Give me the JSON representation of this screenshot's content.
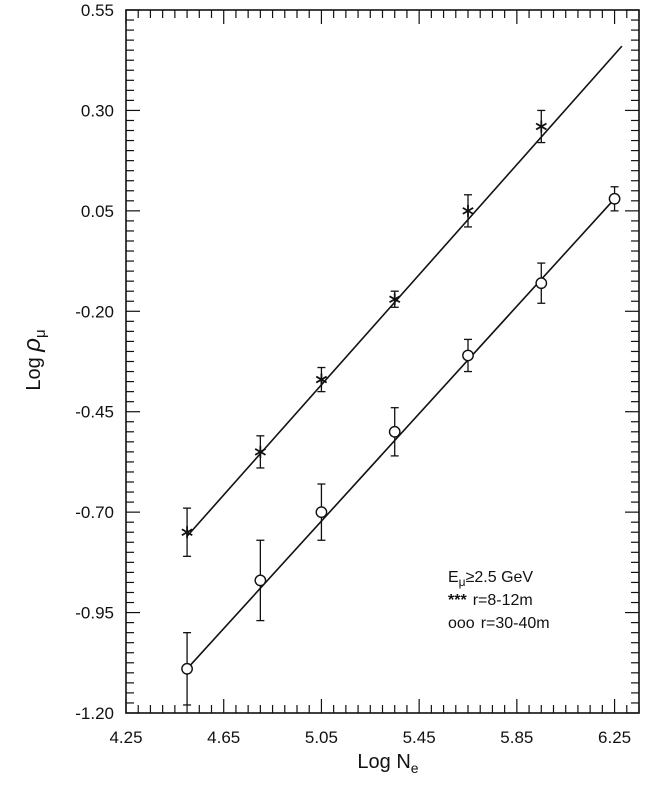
{
  "chart_data": {
    "type": "scatter",
    "xlabel": {
      "text": "Log N",
      "sub": "e"
    },
    "ylabel": {
      "text": "Log ",
      "rho": "ρ",
      "sub": "μ"
    },
    "xlim": [
      4.25,
      6.35
    ],
    "ylim": [
      -1.2,
      0.55
    ],
    "xticks": [
      4.25,
      4.65,
      5.05,
      5.45,
      5.85,
      6.25
    ],
    "xtick_labels": [
      "4.25",
      "4.65",
      "5.05",
      "5.45",
      "5.85",
      "6.25"
    ],
    "yticks": [
      0.55,
      0.3,
      0.05,
      -0.2,
      -0.45,
      -0.7,
      -0.95,
      -1.2
    ],
    "ytick_labels": [
      "0.55",
      "0.30",
      "0.05",
      "-0.20",
      "-0.45",
      "-0.70",
      "-0.95",
      "-1.20"
    ],
    "grid": false,
    "legend_position": "bottom-right",
    "legend": {
      "line1": {
        "prefix": "E",
        "sub": "μ",
        "rest": "≥2.5  GeV"
      },
      "line2": {
        "marker": "***",
        "text": "r=8-12m"
      },
      "line3": {
        "marker": "ooo",
        "text": "r=30-40m"
      }
    },
    "series": [
      {
        "name": "r=8-12m",
        "marker": "asterisk",
        "x": [
          4.5,
          4.8,
          5.05,
          5.35,
          5.65,
          5.95
        ],
        "y": [
          -0.75,
          -0.55,
          -0.37,
          -0.17,
          0.05,
          0.26
        ],
        "yerr": [
          0.06,
          0.04,
          0.03,
          0.02,
          0.04,
          0.04
        ],
        "fit": {
          "x": [
            4.5,
            6.28
          ],
          "y": [
            -0.76,
            0.46
          ]
        }
      },
      {
        "name": "r=30-40m",
        "marker": "circle",
        "x": [
          4.5,
          4.8,
          5.05,
          5.35,
          5.65,
          5.95,
          6.25
        ],
        "y": [
          -1.09,
          -0.87,
          -0.7,
          -0.5,
          -0.31,
          -0.13,
          0.08
        ],
        "yerr": [
          0.09,
          0.1,
          0.07,
          0.06,
          0.04,
          0.05,
          0.03
        ],
        "fit": {
          "x": [
            4.5,
            6.25
          ],
          "y": [
            -1.09,
            0.08
          ]
        }
      }
    ]
  }
}
